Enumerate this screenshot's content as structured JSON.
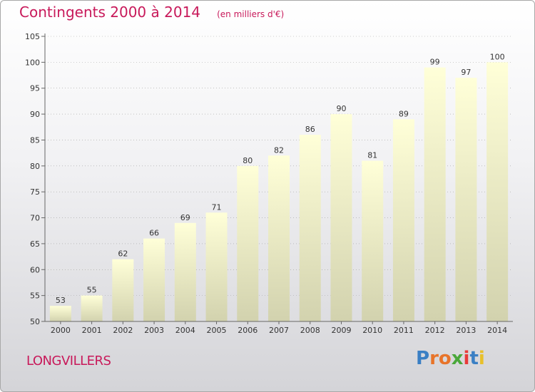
{
  "header": {
    "title": "Contingents 2000 à 2014",
    "subtitle": "(en milliers d'€)"
  },
  "footer": {
    "commune": "LONGVILLERS",
    "logo_text": "Proxiti",
    "logo_colors": [
      "#3a7fc4",
      "#e8742a",
      "#e8742a",
      "#4aa83a",
      "#e83a3a",
      "#3a7fc4",
      "#e8c02a"
    ]
  },
  "colors": {
    "title": "#c8195a",
    "bar_top": "#ffffd8",
    "bar_bottom": "#d2d2ae",
    "axis": "#666666",
    "grid": "#a0a0a0"
  },
  "chart_data": {
    "type": "bar",
    "title": "Contingents 2000 à 2014",
    "subtitle": "(en milliers d'€)",
    "categories": [
      "2000",
      "2001",
      "2002",
      "2003",
      "2004",
      "2005",
      "2006",
      "2007",
      "2008",
      "2009",
      "2010",
      "2011",
      "2012",
      "2013",
      "2014"
    ],
    "values": [
      53,
      55,
      62,
      66,
      69,
      71,
      80,
      82,
      86,
      90,
      81,
      89,
      99,
      97,
      100
    ],
    "ylim": [
      50,
      105
    ],
    "yticks": [
      50,
      55,
      60,
      65,
      70,
      75,
      80,
      85,
      90,
      95,
      100,
      105
    ],
    "grid": true,
    "legend": "none"
  }
}
